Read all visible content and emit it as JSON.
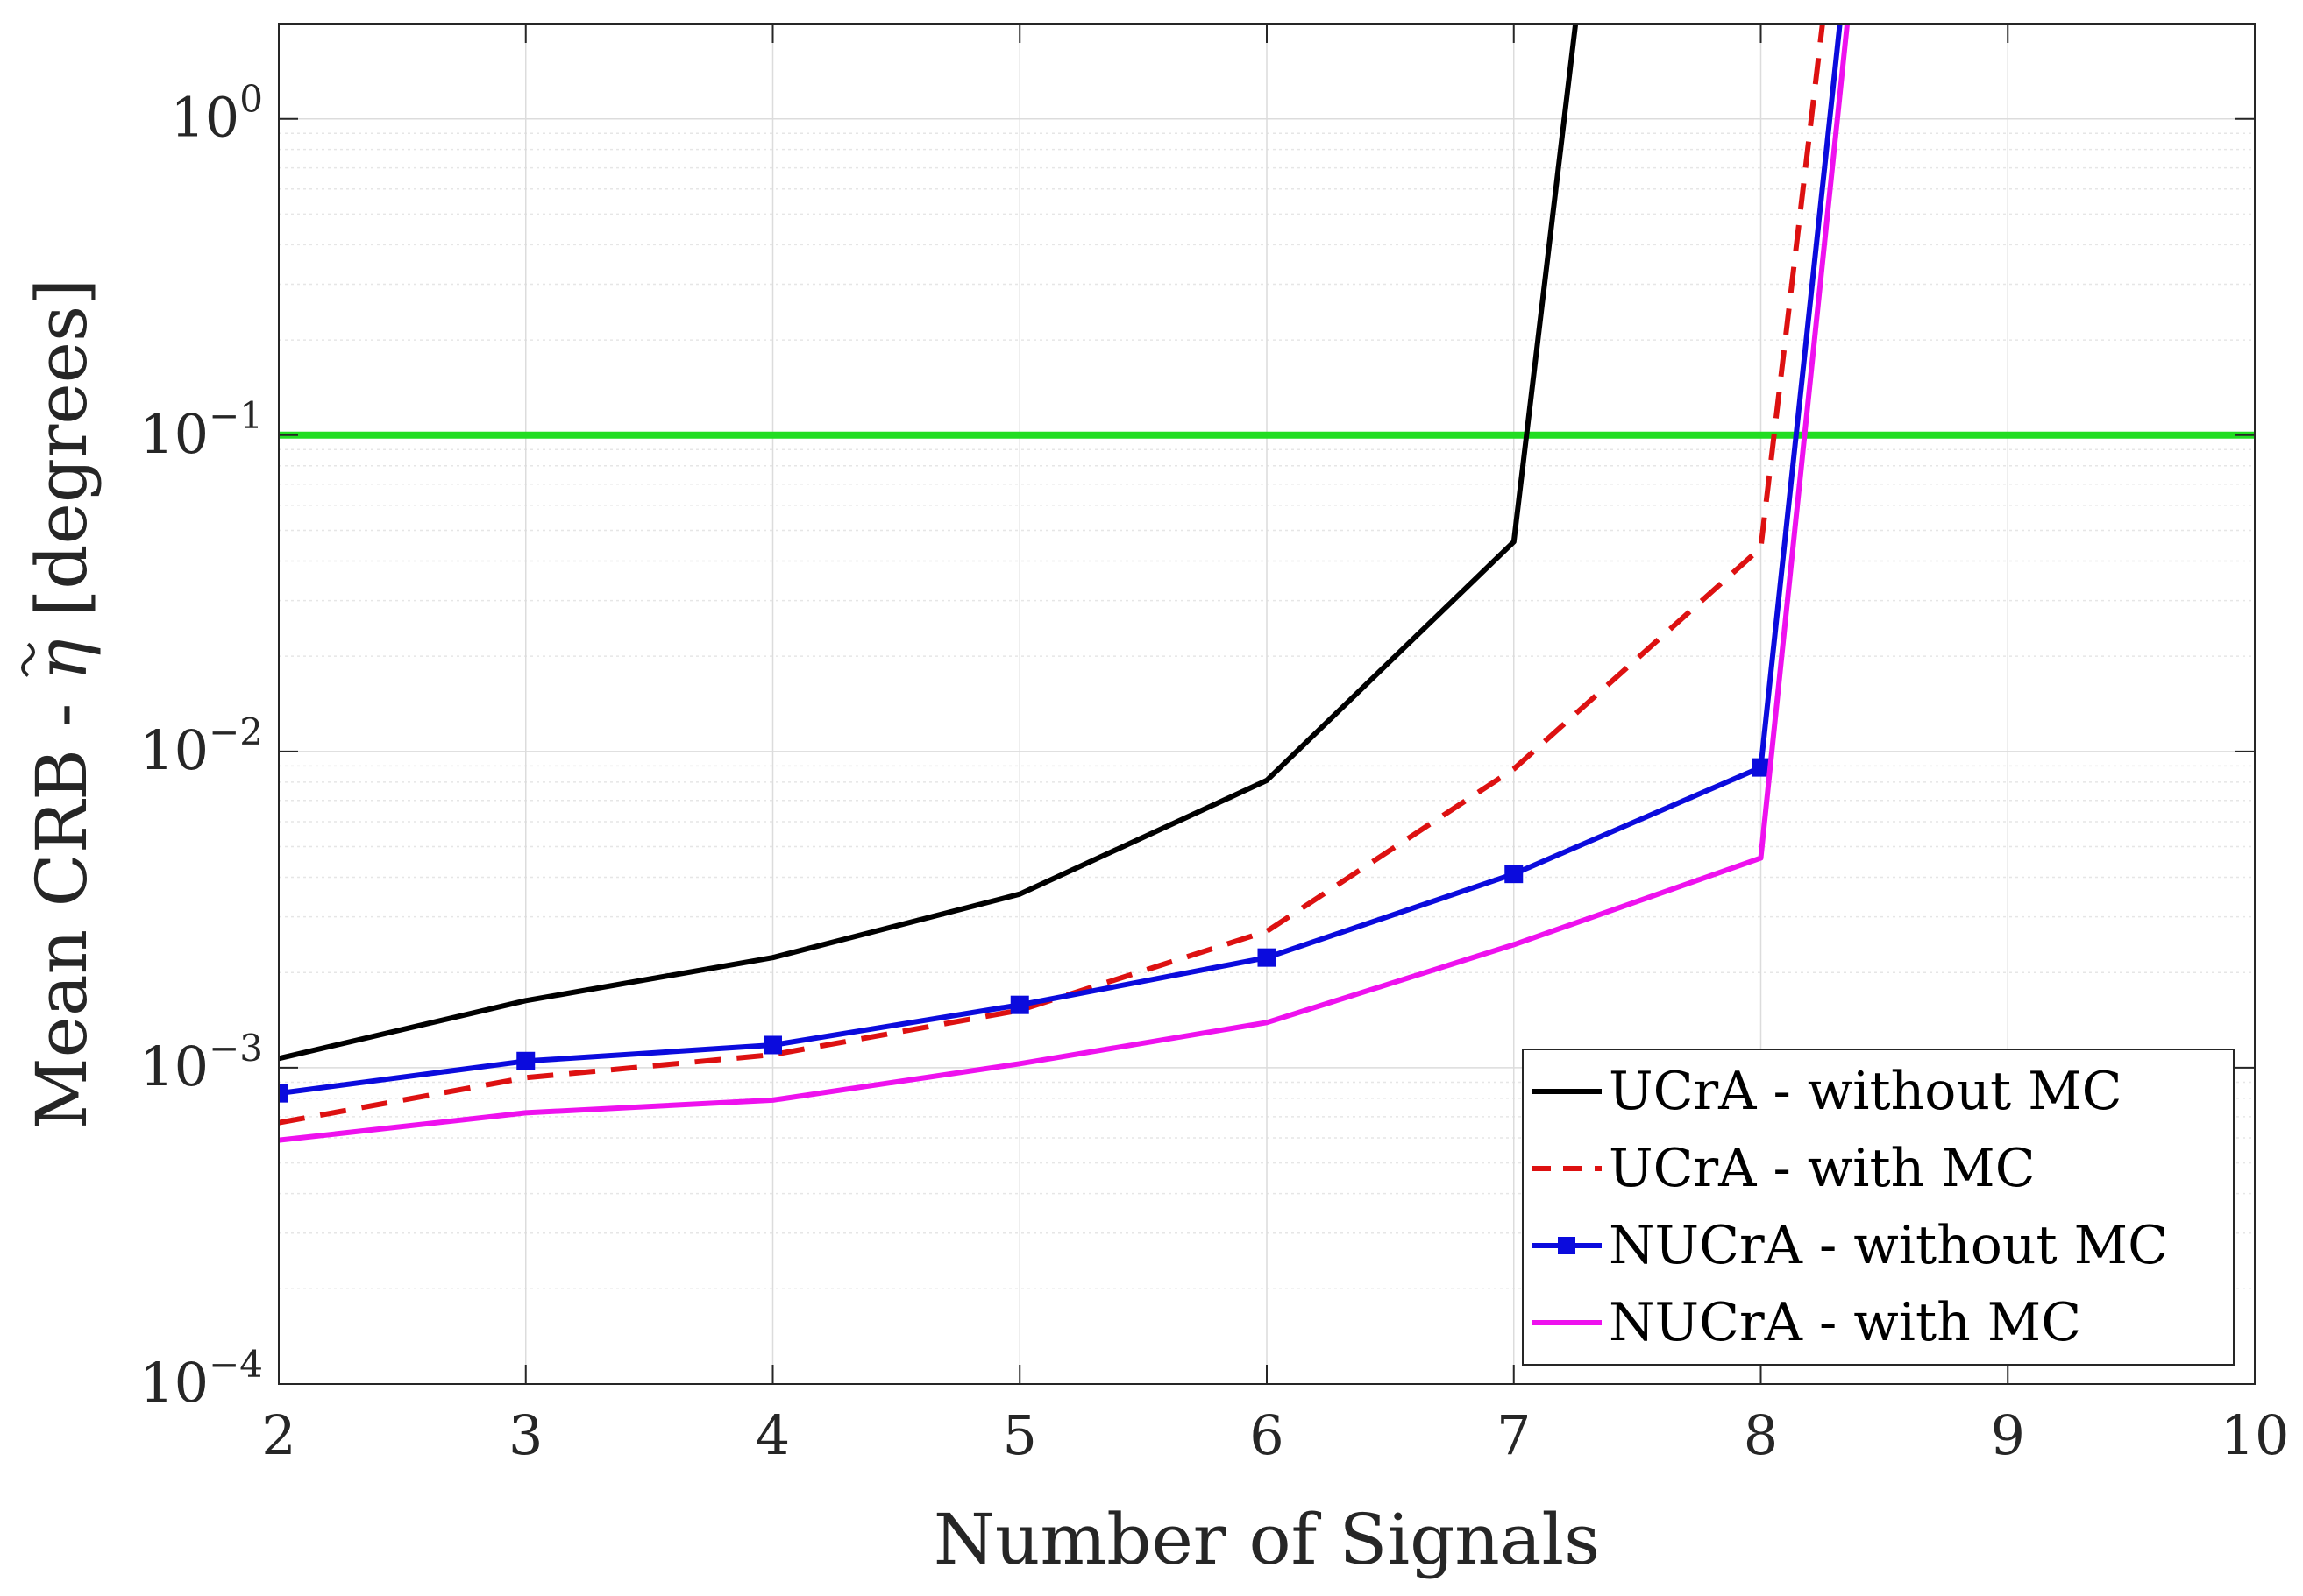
{
  "chart_data": {
    "type": "line",
    "title": "",
    "xlabel": "Number of Signals",
    "ylabel": "Mean CRB - η̃ [degrees]",
    "ylabel_parts": {
      "prefix": "Mean CRB - ",
      "symbol": "η",
      "suffix": " [degrees]"
    },
    "x_scale": "linear",
    "y_scale": "log",
    "xlim": [
      2,
      10
    ],
    "ylim": [
      0.0001,
      2
    ],
    "grid": true,
    "legend_position": "bottom-right",
    "x_ticks": [
      {
        "value": 2,
        "label": "2"
      },
      {
        "value": 3,
        "label": "3"
      },
      {
        "value": 4,
        "label": "4"
      },
      {
        "value": 5,
        "label": "5"
      },
      {
        "value": 6,
        "label": "6"
      },
      {
        "value": 7,
        "label": "7"
      },
      {
        "value": 8,
        "label": "8"
      },
      {
        "value": 9,
        "label": "9"
      },
      {
        "value": 10,
        "label": "10"
      }
    ],
    "y_ticks": [
      {
        "value": 0.0001,
        "base": "10",
        "exponent": "−4"
      },
      {
        "value": 0.001,
        "base": "10",
        "exponent": "−3"
      },
      {
        "value": 0.01,
        "base": "10",
        "exponent": "−2"
      },
      {
        "value": 0.1,
        "base": "10",
        "exponent": "−1"
      },
      {
        "value": 1,
        "base": "10",
        "exponent": "0"
      }
    ],
    "threshold": {
      "value": 0.1,
      "color": "#22dd22"
    },
    "series": [
      {
        "name": "UCrA - without MC",
        "color": "#000000",
        "dash": "solid",
        "marker": "none",
        "x": [
          2,
          3,
          4,
          5,
          6,
          7,
          7.25
        ],
        "y": [
          0.00107,
          0.00163,
          0.00223,
          0.00354,
          0.0081,
          0.046,
          2
        ]
      },
      {
        "name": "UCrA - with MC",
        "color": "#dd1111",
        "dash": "dashed",
        "marker": "none",
        "x": [
          2,
          3,
          4,
          5,
          6,
          7,
          8,
          8.25
        ],
        "y": [
          0.00067,
          0.00093,
          0.0011,
          0.00152,
          0.0027,
          0.0088,
          0.044,
          2
        ]
      },
      {
        "name": "NUCrA - without MC",
        "color": "#0b0bdd",
        "dash": "solid",
        "marker": "square",
        "x": [
          2,
          3,
          4,
          5,
          6,
          7,
          8,
          8.32
        ],
        "y": [
          0.00083,
          0.00105,
          0.00118,
          0.00158,
          0.00223,
          0.0041,
          0.0089,
          2
        ]
      },
      {
        "name": "NUCrA - with MC",
        "color": "#ee11ee",
        "dash": "solid",
        "marker": "none",
        "x": [
          2,
          3,
          4,
          5,
          6,
          7,
          8,
          8.35
        ],
        "y": [
          0.00059,
          0.00072,
          0.00079,
          0.00103,
          0.00139,
          0.00245,
          0.0046,
          2
        ]
      }
    ]
  }
}
